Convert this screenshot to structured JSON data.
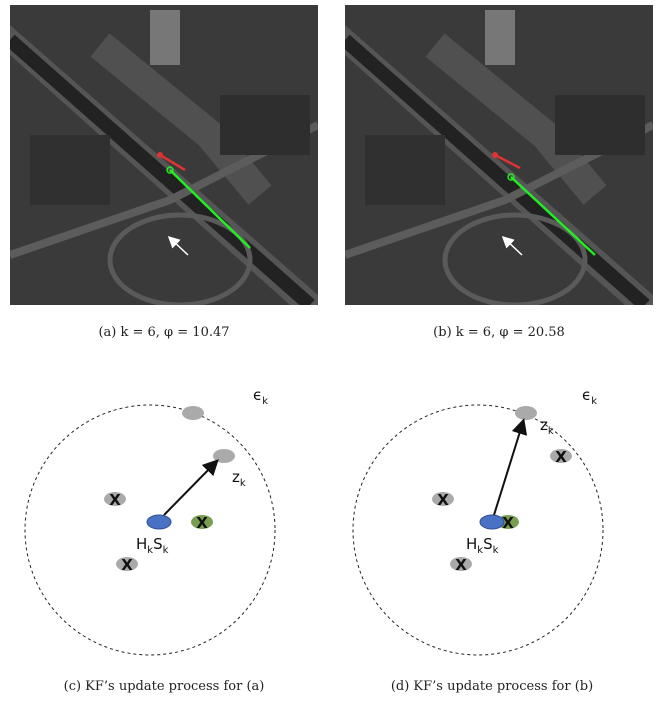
{
  "panels": [
    {
      "image_caption": "(a) k = 6, φ = 10.47",
      "diagram_caption": "(c) KF’s update process for (a)"
    },
    {
      "image_caption": "(b) k = 6, φ = 20.58",
      "diagram_caption": "(d) KF’s update process for (b)"
    }
  ],
  "diagram_labels": {
    "gate": {
      "symbol": "ϵ",
      "sub": "k"
    },
    "measurement": {
      "symbol": "z",
      "sub": "k"
    },
    "prediction": [
      {
        "symbol": "H",
        "sub": "k"
      },
      {
        "symbol": "S",
        "sub": "k"
      }
    ],
    "rejected_mark": "X"
  }
}
